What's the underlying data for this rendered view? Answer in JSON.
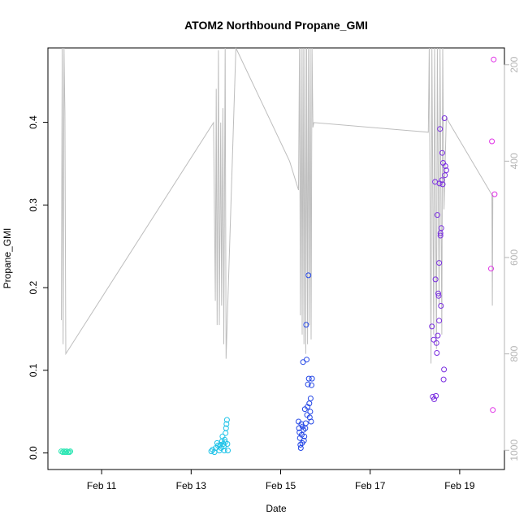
{
  "chart_data": {
    "type": "scatter",
    "title": "ATOM2 Northbound Propane_GMI",
    "xlabel": "Date",
    "ylabel": "Propane_GMI",
    "x_ticks": [
      "Feb 11",
      "Feb 13",
      "Feb 15",
      "Feb 17",
      "Feb 19"
    ],
    "y_ticks": [
      "0.0",
      "0.1",
      "0.2",
      "0.3",
      "0.4"
    ],
    "y2_ticks": [
      "200",
      "400",
      "600",
      "800",
      "1000"
    ],
    "grid": false,
    "colors": {
      "points_feb10": "#2ee6b4",
      "points_feb13": "#1fc3e8",
      "points_feb15": "#2346e6",
      "points_feb18": "#7a2ee0",
      "points_feb19": "#e030e6",
      "pressure_line": "#bdbdbd",
      "axis": "#000000",
      "right_axis": "#b5b5b5"
    },
    "series": [
      {
        "type": "scatter",
        "points": [
          [
            10.1,
            0.002
          ],
          [
            10.13,
            0.001
          ],
          [
            10.16,
            0.002
          ],
          [
            10.18,
            0.001
          ],
          [
            10.2,
            0.001
          ],
          [
            10.22,
            0.002
          ],
          [
            10.25,
            0.001
          ],
          [
            10.28,
            0.001
          ],
          [
            10.3,
            0.002
          ]
        ]
      },
      {
        "type": "scatter",
        "points": [
          [
            13.45,
            0.002
          ],
          [
            13.48,
            0.004
          ],
          [
            13.52,
            0.001
          ],
          [
            13.55,
            0.006
          ],
          [
            13.58,
            0.012
          ],
          [
            13.6,
            0.009
          ],
          [
            13.63,
            0.003
          ],
          [
            13.65,
            0.01
          ],
          [
            13.67,
            0.006
          ],
          [
            13.69,
            0.014
          ],
          [
            13.7,
            0.02
          ],
          [
            13.72,
            0.011
          ],
          [
            13.73,
            0.008
          ],
          [
            13.74,
            0.003
          ],
          [
            13.75,
            0.016
          ],
          [
            13.76,
            0.013
          ],
          [
            13.77,
            0.024
          ],
          [
            13.78,
            0.03
          ],
          [
            13.79,
            0.035
          ],
          [
            13.8,
            0.04
          ],
          [
            13.81,
            0.011
          ],
          [
            13.82,
            0.003
          ]
        ]
      },
      {
        "type": "scatter",
        "points": [
          [
            15.4,
            0.038
          ],
          [
            15.41,
            0.03
          ],
          [
            15.42,
            0.025
          ],
          [
            15.43,
            0.018
          ],
          [
            15.44,
            0.01
          ],
          [
            15.45,
            0.006
          ],
          [
            15.46,
            0.035
          ],
          [
            15.47,
            0.022
          ],
          [
            15.48,
            0.012
          ],
          [
            15.49,
            0.032
          ],
          [
            15.5,
            0.11
          ],
          [
            15.51,
            0.028
          ],
          [
            15.52,
            0.015
          ],
          [
            15.53,
            0.02
          ],
          [
            15.54,
            0.053
          ],
          [
            15.55,
            0.03
          ],
          [
            15.56,
            0.036
          ],
          [
            15.57,
            0.155
          ],
          [
            15.58,
            0.113
          ],
          [
            15.59,
            0.046
          ],
          [
            15.6,
            0.056
          ],
          [
            15.61,
            0.083
          ],
          [
            15.62,
            0.215
          ],
          [
            15.63,
            0.09
          ],
          [
            15.64,
            0.06
          ],
          [
            15.65,
            0.043
          ],
          [
            15.66,
            0.05
          ],
          [
            15.67,
            0.066
          ],
          [
            15.68,
            0.038
          ],
          [
            15.69,
            0.082
          ],
          [
            15.7,
            0.09
          ]
        ]
      },
      {
        "type": "scatter",
        "points": [
          [
            18.38,
            0.153
          ],
          [
            18.4,
            0.068
          ],
          [
            18.42,
            0.137
          ],
          [
            18.43,
            0.065
          ],
          [
            18.45,
            0.328
          ],
          [
            18.46,
            0.21
          ],
          [
            18.47,
            0.069
          ],
          [
            18.48,
            0.133
          ],
          [
            18.49,
            0.121
          ],
          [
            18.5,
            0.288
          ],
          [
            18.51,
            0.142
          ],
          [
            18.52,
            0.193
          ],
          [
            18.53,
            0.19
          ],
          [
            18.54,
            0.23
          ],
          [
            18.55,
            0.326
          ],
          [
            18.56,
            0.392
          ],
          [
            18.57,
            0.263
          ],
          [
            18.58,
            0.178
          ],
          [
            18.59,
            0.272
          ],
          [
            18.6,
            0.33
          ],
          [
            18.61,
            0.363
          ],
          [
            18.62,
            0.325
          ],
          [
            18.63,
            0.351
          ],
          [
            18.64,
            0.089
          ],
          [
            18.65,
            0.101
          ],
          [
            18.66,
            0.405
          ],
          [
            18.67,
            0.336
          ],
          [
            18.68,
            0.347
          ],
          [
            18.7,
            0.342
          ],
          [
            18.54,
            0.16
          ],
          [
            18.57,
            0.266
          ]
        ]
      },
      {
        "type": "scatter",
        "points": [
          [
            19.7,
            0.223
          ],
          [
            19.72,
            0.377
          ],
          [
            19.74,
            0.052
          ],
          [
            19.76,
            0.476
          ],
          [
            19.78,
            0.313
          ]
        ]
      }
    ],
    "pressure_line": {
      "axis": "right",
      "points": [
        [
          10.1,
          730
        ],
        [
          10.12,
          120
        ],
        [
          10.14,
          780
        ],
        [
          10.16,
          120
        ],
        [
          10.18,
          300
        ],
        [
          10.2,
          800
        ],
        [
          13.5,
          320
        ],
        [
          13.54,
          690
        ],
        [
          13.56,
          250
        ],
        [
          13.58,
          740
        ],
        [
          13.61,
          170
        ],
        [
          13.63,
          740
        ],
        [
          13.66,
          320
        ],
        [
          13.68,
          700
        ],
        [
          13.71,
          290
        ],
        [
          13.73,
          780
        ],
        [
          13.76,
          120
        ],
        [
          13.78,
          810
        ],
        [
          14.0,
          120
        ],
        [
          15.2,
          400
        ],
        [
          15.4,
          460
        ],
        [
          15.42,
          120
        ],
        [
          15.44,
          720
        ],
        [
          15.46,
          120
        ],
        [
          15.48,
          760
        ],
        [
          15.5,
          120
        ],
        [
          15.52,
          780
        ],
        [
          15.54,
          120
        ],
        [
          15.56,
          800
        ],
        [
          15.58,
          120
        ],
        [
          15.6,
          780
        ],
        [
          15.62,
          120
        ],
        [
          15.64,
          740
        ],
        [
          15.66,
          120
        ],
        [
          15.68,
          770
        ],
        [
          15.7,
          120
        ],
        [
          15.72,
          330
        ],
        [
          15.74,
          320
        ],
        [
          18.3,
          340
        ],
        [
          18.32,
          120
        ],
        [
          18.36,
          820
        ],
        [
          18.38,
          120
        ],
        [
          18.42,
          760
        ],
        [
          18.44,
          120
        ],
        [
          18.48,
          790
        ],
        [
          18.5,
          120
        ],
        [
          18.54,
          700
        ],
        [
          18.56,
          120
        ],
        [
          18.6,
          760
        ],
        [
          18.62,
          120
        ],
        [
          18.65,
          500
        ],
        [
          18.7,
          310
        ],
        [
          19.72,
          470
        ],
        [
          19.73,
          700
        ],
        [
          19.74,
          470
        ]
      ]
    },
    "xlim": [
      9.8,
      20.0
    ],
    "ylim": [
      -0.02,
      0.49
    ],
    "y2lim": [
      1040,
      165
    ]
  }
}
